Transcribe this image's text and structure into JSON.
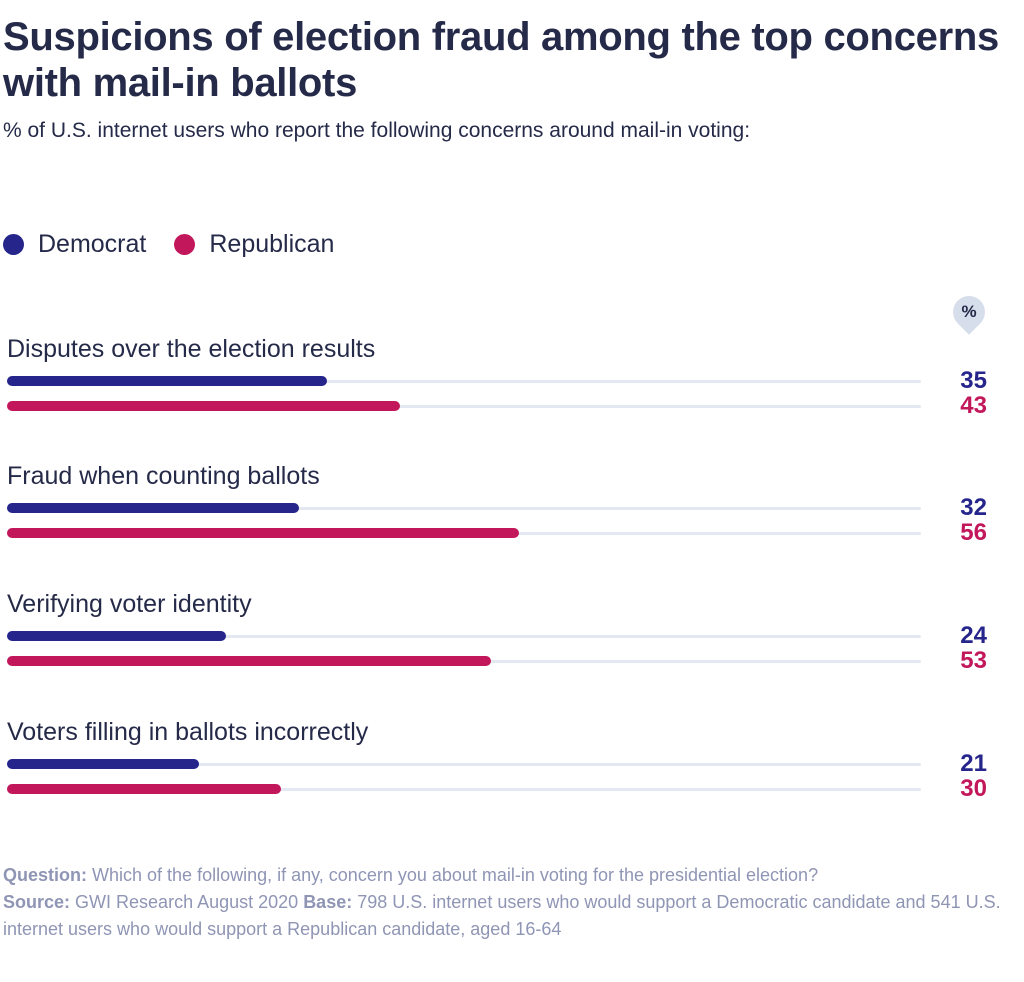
{
  "header": {
    "title": "Suspicions of election fraud among the top concerns with mail-in ballots",
    "subtitle": "% of U.S. internet users who report the following concerns around mail-in voting:"
  },
  "legend": [
    {
      "label": "Democrat",
      "color": "#25258c"
    },
    {
      "label": "Republican",
      "color": "#c2185b"
    }
  ],
  "unit_badge": "%",
  "chart_data": {
    "type": "bar",
    "orientation": "horizontal",
    "categories": [
      "Disputes over the election results",
      "Fraud when counting ballots",
      "Verifying voter identity",
      "Voters filling in ballots incorrectly"
    ],
    "series": [
      {
        "name": "Democrat",
        "color": "#25258c",
        "values": [
          35,
          32,
          24,
          21
        ]
      },
      {
        "name": "Republican",
        "color": "#c2185b",
        "values": [
          43,
          56,
          53,
          30
        ]
      }
    ],
    "xlim": [
      0,
      100
    ],
    "title": "Suspicions of election fraud among the top concerns with mail-in ballots",
    "xlabel": "",
    "ylabel": "%"
  },
  "footnote": {
    "question_label": "Question:",
    "question_text": "Which of the following, if any, concern you about mail-in voting for the presidential election?",
    "source_label": "Source:",
    "source_text": "GWI Research August 2020",
    "base_label": "Base:",
    "base_text": "798 U.S. internet users who would support a Democratic candidate and 541 U.S. internet users who would support a Republican candidate, aged 16-64"
  }
}
